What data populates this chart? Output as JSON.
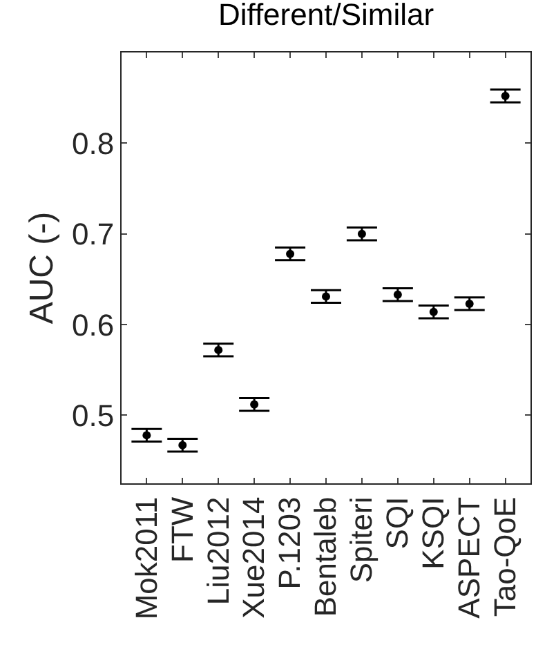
{
  "chart_data": {
    "type": "scatter",
    "title": "Different/Similar",
    "ylabel": "AUC (-)",
    "categories": [
      "Mok2011",
      "FTW",
      "Liu2012",
      "Xue2014",
      "P.1203",
      "Bentaleb",
      "Spiteri",
      "SQI",
      "KSQI",
      "ASPECT",
      "Tao-QoE"
    ],
    "series": [
      {
        "color": "#000000",
        "values": [
          0.478,
          0.467,
          0.572,
          0.512,
          0.678,
          0.631,
          0.7,
          0.633,
          0.614,
          0.623,
          0.852
        ],
        "errors": [
          0.007,
          0.007,
          0.007,
          0.007,
          0.007,
          0.007,
          0.007,
          0.007,
          0.007,
          0.007,
          0.007
        ]
      }
    ],
    "ylim": [
      0.425,
      0.9
    ],
    "yticks": [
      0.5,
      0.6,
      0.7,
      0.8
    ],
    "marker": "circle"
  }
}
